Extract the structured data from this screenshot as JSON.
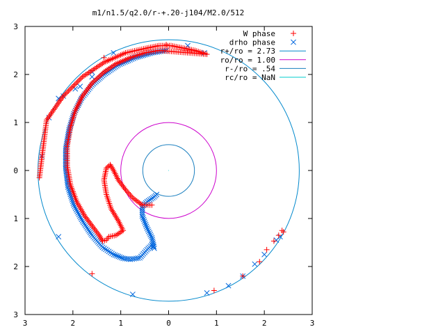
{
  "chart_data": {
    "type": "scatter",
    "title": "m1/n1.5/q2.0/r-+.20-j104/M2.0/512",
    "xlabel": "",
    "ylabel": "",
    "xlim": [
      -3,
      3
    ],
    "ylim": [
      -3,
      3
    ],
    "aspect": "equal",
    "grid": false,
    "legend_position": "top-right",
    "x_tick_labels": [
      "3",
      "2",
      "1",
      "0",
      "1",
      "2",
      "3"
    ],
    "y_tick_labels": [
      "3",
      "2",
      "1",
      "0",
      "1",
      "2",
      "3"
    ],
    "series": [
      {
        "name": "W phase",
        "kind": "points",
        "marker": "plus",
        "color": "#ff0000",
        "legend_sample": "+",
        "polyline": [
          [
            -2.7,
            -0.15
          ],
          [
            -2.55,
            1.05
          ],
          [
            -2.2,
            1.55
          ],
          [
            -1.8,
            1.95
          ],
          [
            -1.35,
            2.25
          ],
          [
            -0.9,
            2.45
          ],
          [
            -0.45,
            2.55
          ],
          [
            -0.2,
            2.6
          ],
          [
            0.05,
            2.6
          ],
          [
            0.3,
            2.55
          ],
          [
            0.55,
            2.5
          ],
          [
            0.8,
            2.42
          ],
          [
            -0.2,
            2.5
          ],
          [
            -0.5,
            2.45
          ],
          [
            -0.8,
            2.35
          ],
          [
            -1.1,
            2.22
          ],
          [
            -1.35,
            2.05
          ],
          [
            -1.6,
            1.82
          ],
          [
            -1.8,
            1.55
          ],
          [
            -1.95,
            1.25
          ],
          [
            -2.05,
            0.9
          ],
          [
            -2.12,
            0.5
          ],
          [
            -2.12,
            0.1
          ],
          [
            -2.05,
            -0.3
          ],
          [
            -1.92,
            -0.65
          ],
          [
            -1.75,
            -0.95
          ],
          [
            -1.6,
            -1.15
          ],
          [
            -1.45,
            -1.35
          ],
          [
            -1.38,
            -1.47
          ],
          [
            -1.3,
            -1.45
          ],
          [
            -1.25,
            -1.38
          ],
          [
            -1.1,
            -1.35
          ],
          [
            -0.95,
            -1.25
          ],
          [
            -1.05,
            -1.05
          ],
          [
            -1.2,
            -0.8
          ],
          [
            -1.3,
            -0.5
          ],
          [
            -1.35,
            -0.2
          ],
          [
            -1.3,
            0.05
          ],
          [
            -1.22,
            0.12
          ],
          [
            -1.15,
            0.0
          ],
          [
            -1.05,
            -0.2
          ],
          [
            -0.9,
            -0.4
          ],
          [
            -0.75,
            -0.57
          ],
          [
            -0.55,
            -0.72
          ],
          [
            -0.35,
            -0.72
          ]
        ],
        "extra_points": [
          [
            -1.6,
            -2.15
          ],
          [
            -1.35,
            2.35
          ],
          [
            -1.25,
            2.3
          ],
          [
            -0.05,
            2.62
          ],
          [
            0.95,
            -2.5
          ],
          [
            1.55,
            -2.2
          ],
          [
            1.9,
            -1.9
          ],
          [
            2.05,
            -1.65
          ],
          [
            2.2,
            -1.47
          ],
          [
            2.3,
            -1.35
          ],
          [
            2.37,
            -1.25
          ],
          [
            2.4,
            -1.28
          ]
        ]
      },
      {
        "name": "drho phase",
        "kind": "points",
        "marker": "cross",
        "color": "#0066dd",
        "legend_sample": "×",
        "polyline": [
          [
            -0.05,
            2.5
          ],
          [
            -0.35,
            2.45
          ],
          [
            -0.7,
            2.35
          ],
          [
            -1.05,
            2.2
          ],
          [
            -1.35,
            2.0
          ],
          [
            -1.6,
            1.78
          ],
          [
            -1.82,
            1.5
          ],
          [
            -1.98,
            1.18
          ],
          [
            -2.08,
            0.85
          ],
          [
            -2.15,
            0.45
          ],
          [
            -2.15,
            0.05
          ],
          [
            -2.1,
            -0.35
          ],
          [
            -1.98,
            -0.72
          ],
          [
            -1.8,
            -1.05
          ],
          [
            -1.6,
            -1.35
          ],
          [
            -1.38,
            -1.6
          ],
          [
            -1.15,
            -1.75
          ],
          [
            -0.95,
            -1.83
          ],
          [
            -0.8,
            -1.85
          ],
          [
            -0.6,
            -1.82
          ],
          [
            -0.45,
            -1.65
          ],
          [
            -0.35,
            -1.55
          ],
          [
            -0.3,
            -1.62
          ],
          [
            -0.35,
            -1.4
          ],
          [
            -0.45,
            -1.2
          ],
          [
            -0.55,
            -0.95
          ],
          [
            -0.55,
            -0.75
          ],
          [
            -0.45,
            -0.65
          ],
          [
            -0.3,
            -0.55
          ],
          [
            -0.25,
            -0.5
          ]
        ],
        "extra_points": [
          [
            -2.65,
            0.3
          ],
          [
            -2.5,
            1.1
          ],
          [
            -2.3,
            1.5
          ],
          [
            -2.2,
            1.55
          ],
          [
            -1.95,
            1.7
          ],
          [
            -1.85,
            1.75
          ],
          [
            -1.6,
            1.95
          ],
          [
            -1.6,
            2.05
          ],
          [
            -1.15,
            2.45
          ],
          [
            0.4,
            2.6
          ],
          [
            0.75,
            2.45
          ],
          [
            -2.3,
            -1.38
          ],
          [
            -0.75,
            -2.58
          ],
          [
            0.8,
            -2.55
          ],
          [
            1.25,
            -2.4
          ],
          [
            1.55,
            -2.2
          ],
          [
            1.8,
            -1.95
          ],
          [
            2.0,
            -1.75
          ],
          [
            2.25,
            -1.45
          ],
          [
            2.33,
            -1.38
          ]
        ]
      },
      {
        "name": "r+/ro = 2.73",
        "kind": "circle",
        "radius": 2.73,
        "color": "#0088cc",
        "legend_sample": "line"
      },
      {
        "name": "ro/ro = 1.00",
        "kind": "circle",
        "radius": 1.0,
        "color": "#cc00cc",
        "legend_sample": "line"
      },
      {
        "name": "r-/ro = .54",
        "kind": "circle",
        "radius": 0.54,
        "color": "#1a7fbf",
        "legend_sample": "line"
      },
      {
        "name": "rc/ro = NaN",
        "kind": "circle",
        "radius": 0,
        "color": "#00cccc",
        "legend_sample": "line"
      }
    ]
  }
}
